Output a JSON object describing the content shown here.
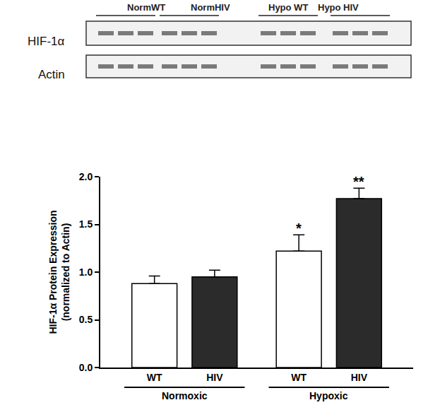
{
  "blot": {
    "groups": [
      "NormWT",
      "NormHIV",
      "Hypo WT",
      "Hypo HIV"
    ],
    "rows": [
      "HIF-1α",
      "Actin"
    ]
  },
  "chart_data": {
    "type": "bar",
    "categories": [
      "WT",
      "HIV",
      "WT",
      "HIV"
    ],
    "group": [
      "Normoxic",
      "Normoxic",
      "Hypoxic",
      "Hypoxic"
    ],
    "values": [
      0.88,
      0.95,
      1.22,
      1.77
    ],
    "errors": [
      0.08,
      0.07,
      0.17,
      0.11
    ],
    "significance": [
      null,
      null,
      "*",
      "**"
    ],
    "colors": [
      "#ffffff",
      "#2b2b2b",
      "#ffffff",
      "#2b2b2b"
    ],
    "y_label": [
      "HIF-1α Protein Expression",
      "(normalized to Actin)"
    ],
    "ylim": [
      0,
      2
    ],
    "yticks": [
      {
        "value": 0,
        "label": "0.0"
      },
      {
        "value": 0.5,
        "label": "0.5"
      },
      {
        "value": 1,
        "label": "1.0"
      },
      {
        "value": 1.5,
        "label": "1.5"
      },
      {
        "value": 2,
        "label": "2.0"
      }
    ],
    "grid": false
  }
}
